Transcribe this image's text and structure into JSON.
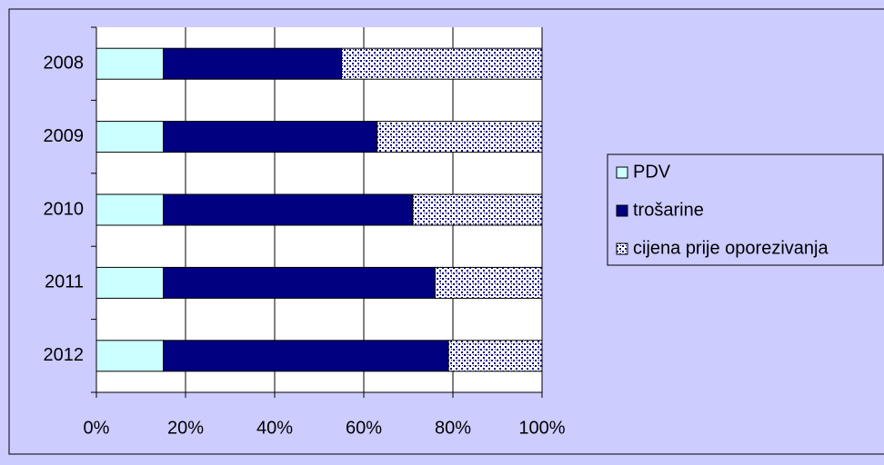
{
  "chart_data": {
    "type": "stacked-bar-horizontal",
    "categories": [
      "2008",
      "2009",
      "2010",
      "2011",
      "2012"
    ],
    "series": [
      {
        "name": "PDV",
        "color": "#ccffff",
        "values": [
          15,
          15,
          15,
          15,
          15
        ]
      },
      {
        "name": "trošarine",
        "color": "#000080",
        "values": [
          40,
          48,
          56,
          61,
          64
        ]
      },
      {
        "name": "cijena prije oporezivanja",
        "color": "#000080",
        "pattern": "dots",
        "values": [
          45,
          37,
          29,
          24,
          21
        ]
      }
    ],
    "xlim": [
      0,
      100
    ],
    "xticks": [
      {
        "value": 0,
        "label": "0%"
      },
      {
        "value": 20,
        "label": "20%"
      },
      {
        "value": 40,
        "label": "40%"
      },
      {
        "value": 60,
        "label": "60%"
      },
      {
        "value": 80,
        "label": "80%"
      },
      {
        "value": 100,
        "label": "100%"
      }
    ],
    "grid": true,
    "legend": "right"
  }
}
